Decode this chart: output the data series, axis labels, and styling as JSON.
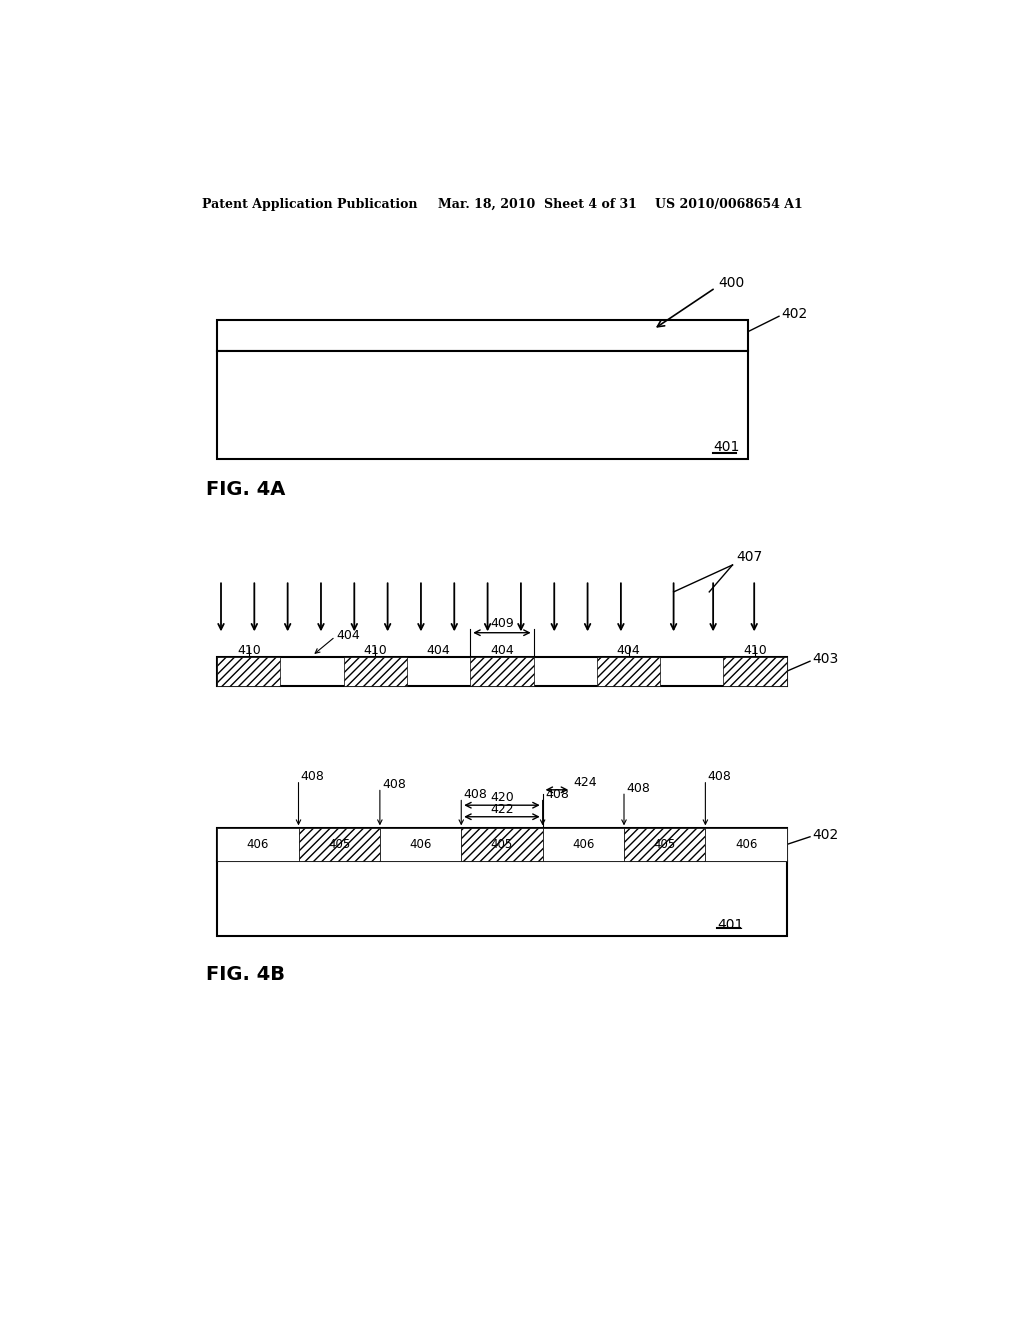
{
  "header_left": "Patent Application Publication",
  "header_mid": "Mar. 18, 2010  Sheet 4 of 31",
  "header_right": "US 2010/0068654 A1",
  "fig_a_label": "FIG. 4A",
  "fig_b_label": "FIG. 4B",
  "bg_color": "#ffffff",
  "line_color": "#000000"
}
